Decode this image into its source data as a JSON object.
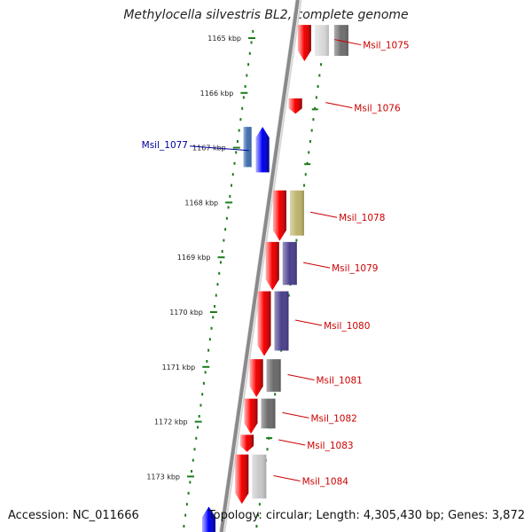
{
  "title": "Methylocella silvestris BL2, complete genome",
  "footer": {
    "accession": "Accession: NC_011666",
    "summary": "Topology: circular; Length: 4,305,430 bp; Genes: 3,872"
  },
  "colors": {
    "backbone": "#8a8a8a",
    "tick_dots": "#1b7d1b",
    "forward_label": "#cc0000",
    "reverse_label": "#00009a",
    "red_gene": "#ff0000",
    "blue_gene": "#0000ff"
  },
  "scale": {
    "unit": "kbp",
    "ticks": [
      "1165 kbp",
      "1166 kbp",
      "1167 kbp",
      "1168 kbp",
      "1169 kbp",
      "1170 kbp",
      "1171 kbp",
      "1172 kbp",
      "1173 kbp"
    ]
  },
  "genes": [
    {
      "label": "Msil_1075",
      "strand": "forward",
      "start_kbp": 1164.76,
      "end_kbp": 1165.42,
      "color": "#ff0000"
    },
    {
      "label": "Msil_1076",
      "strand": "forward",
      "start_kbp": 1166.1,
      "end_kbp": 1166.38,
      "color": "#ff0000"
    },
    {
      "label": "Msil_1077",
      "strand": "reverse",
      "start_kbp": 1166.62,
      "end_kbp": 1167.45,
      "color": "#0000ff"
    },
    {
      "label": "Msil_1078",
      "strand": "forward",
      "start_kbp": 1167.78,
      "end_kbp": 1168.7,
      "color": "#ff0000"
    },
    {
      "label": "Msil_1079",
      "strand": "forward",
      "start_kbp": 1168.72,
      "end_kbp": 1169.6,
      "color": "#ff0000"
    },
    {
      "label": "Msil_1080",
      "strand": "forward",
      "start_kbp": 1169.62,
      "end_kbp": 1170.8,
      "color": "#ff0000"
    },
    {
      "label": "Msil_1081",
      "strand": "forward",
      "start_kbp": 1170.86,
      "end_kbp": 1171.55,
      "color": "#ff0000"
    },
    {
      "label": "Msil_1082",
      "strand": "forward",
      "start_kbp": 1171.58,
      "end_kbp": 1172.22,
      "color": "#ff0000"
    },
    {
      "label": "Msil_1083",
      "strand": "forward",
      "start_kbp": 1172.24,
      "end_kbp": 1172.55,
      "color": "#ff0000"
    },
    {
      "label": "Msil_1084",
      "strand": "forward",
      "start_kbp": 1172.6,
      "end_kbp": 1173.5,
      "color": "#ff0000"
    },
    {
      "label": "",
      "strand": "reverse",
      "start_kbp": 1173.55,
      "end_kbp": 1174.2,
      "color": "#0000ff"
    }
  ],
  "homologs": [
    {
      "gene": "Msil_1075",
      "color": "#d9d9d9"
    },
    {
      "gene": "Msil_1075",
      "color": "#6e6e6e"
    },
    {
      "gene": "Msil_1077",
      "color": "#3f6fb0"
    },
    {
      "gene": "Msil_1078",
      "color": "#bdb36a"
    },
    {
      "gene": "Msil_1079",
      "color": "#4a3f8c"
    },
    {
      "gene": "Msil_1080",
      "color": "#4a3f8c"
    },
    {
      "gene": "Msil_1081",
      "color": "#6a6a6a"
    },
    {
      "gene": "Msil_1082",
      "color": "#6a6a6a"
    },
    {
      "gene": "Msil_1084",
      "color": "#c8c8c8"
    }
  ]
}
